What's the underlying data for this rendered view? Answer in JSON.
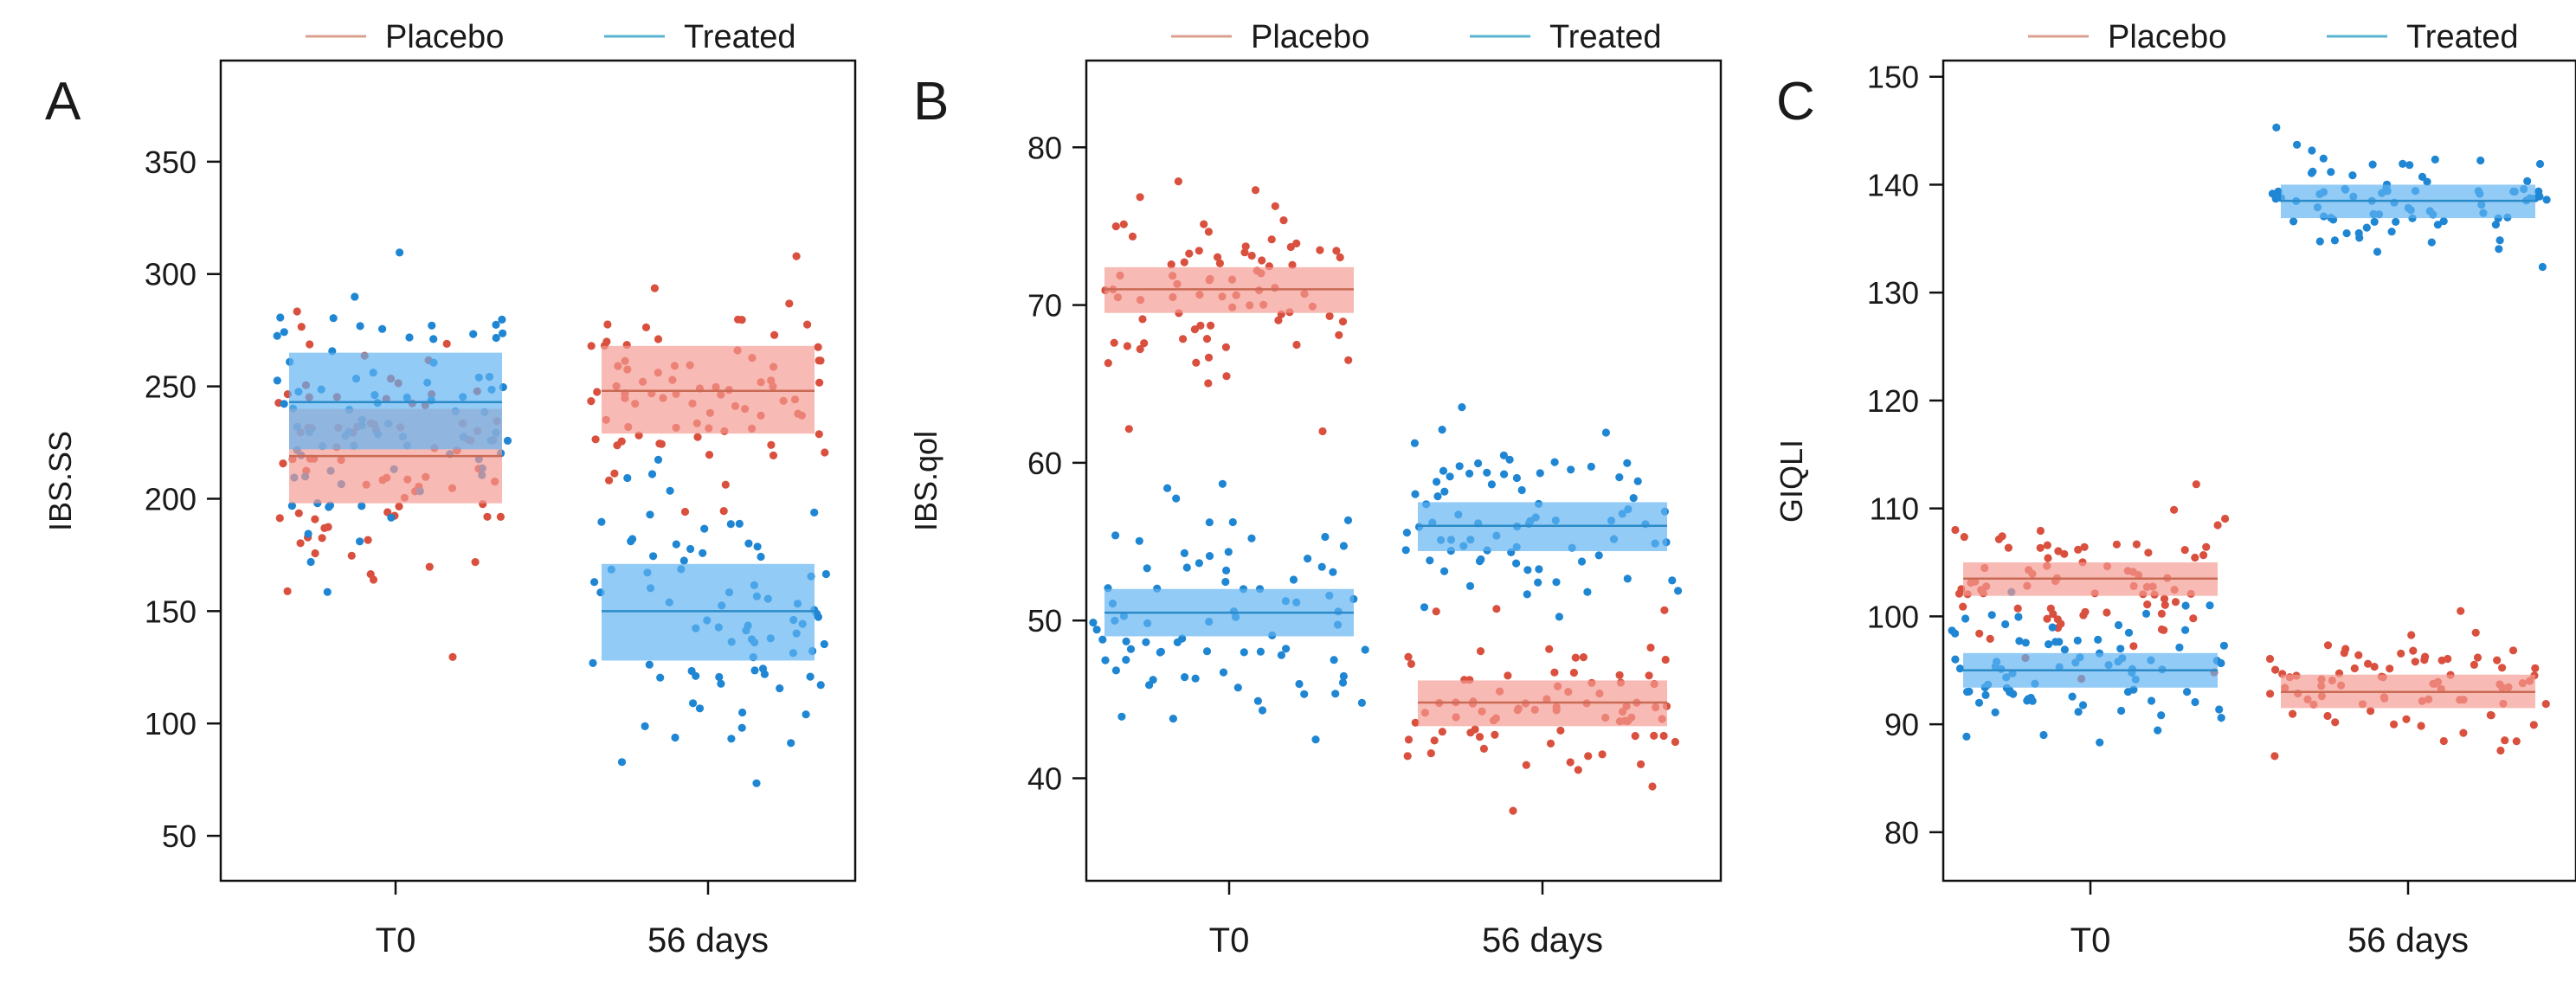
{
  "chart_data": [
    {
      "type": "scatter",
      "panel_label": "A",
      "ylabel": "IBS.SS",
      "xlabel": "",
      "categories": [
        "T0",
        "56 days"
      ],
      "ylim": [
        30,
        395
      ],
      "yticks": [
        50,
        100,
        150,
        200,
        250,
        300,
        350
      ],
      "grid": false,
      "legend": {
        "position": "top",
        "entries": [
          "Placebo",
          "Treated"
        ]
      },
      "groups": [
        {
          "category": "T0",
          "series": "Placebo",
          "mean": 219,
          "ci": [
            198,
            240
          ],
          "spread": 70,
          "seed": 11
        },
        {
          "category": "T0",
          "series": "Treated",
          "mean": 243,
          "ci": [
            222,
            265
          ],
          "spread": 75,
          "seed": 12
        },
        {
          "category": "56 days",
          "series": "Placebo",
          "mean": 248,
          "ci": [
            229,
            268
          ],
          "spread": 45,
          "seed": 13
        },
        {
          "category": "56 days",
          "series": "Treated",
          "mean": 150,
          "ci": [
            128,
            171
          ],
          "spread": 70,
          "seed": 14
        }
      ]
    },
    {
      "type": "scatter",
      "panel_label": "B",
      "ylabel": "IBS.qol",
      "xlabel": "",
      "categories": [
        "T0",
        "56 days"
      ],
      "ylim": [
        33.5,
        85.5
      ],
      "yticks": [
        40,
        50,
        60,
        70,
        80
      ],
      "grid": false,
      "legend": {
        "position": "top",
        "entries": [
          "Placebo",
          "Treated"
        ]
      },
      "groups": [
        {
          "category": "T0",
          "series": "Placebo",
          "mean": 71,
          "ci": [
            69.5,
            72.4
          ],
          "spread": 7,
          "seed": 21
        },
        {
          "category": "T0",
          "series": "Treated",
          "mean": 50.5,
          "ci": [
            49.0,
            52.0
          ],
          "spread": 8,
          "seed": 22
        },
        {
          "category": "56 days",
          "series": "Placebo",
          "mean": 44.8,
          "ci": [
            43.3,
            46.2
          ],
          "spread": 6,
          "seed": 23
        },
        {
          "category": "56 days",
          "series": "Treated",
          "mean": 56,
          "ci": [
            54.4,
            57.5
          ],
          "spread": 6,
          "seed": 24
        }
      ]
    },
    {
      "type": "scatter",
      "panel_label": "C",
      "ylabel": "GIQLI",
      "xlabel": "",
      "categories": [
        "T0",
        "56 days"
      ],
      "ylim": [
        75.5,
        151.5
      ],
      "yticks": [
        80,
        90,
        100,
        110,
        120,
        130,
        140,
        150
      ],
      "grid": false,
      "legend": {
        "position": "top",
        "entries": [
          "Placebo",
          "Treated"
        ]
      },
      "groups": [
        {
          "category": "T0",
          "series": "Placebo",
          "mean": 103.5,
          "ci": [
            101.9,
            105.0
          ],
          "spread": 8,
          "seed": 31
        },
        {
          "category": "T0",
          "series": "Treated",
          "mean": 95,
          "ci": [
            93.4,
            96.6
          ],
          "spread": 7,
          "seed": 32
        },
        {
          "category": "56 days",
          "series": "Placebo",
          "mean": 93,
          "ci": [
            91.5,
            94.6
          ],
          "spread": 6,
          "seed": 33
        },
        {
          "category": "56 days",
          "series": "Treated",
          "mean": 138.5,
          "ci": [
            136.9,
            140.0
          ],
          "spread": 5,
          "seed": 34
        }
      ]
    }
  ],
  "colors": {
    "placebo_point": "#d9503f",
    "placebo_line": "#c96a55",
    "placebo_band": "#f49a90",
    "placebo_legend": "#d9a08f",
    "treated_point": "#1f86d3",
    "treated_line": "#2b8bc8",
    "treated_band": "#5eb3f2",
    "treated_legend": "#5ab3d0",
    "axis": "#111111"
  }
}
